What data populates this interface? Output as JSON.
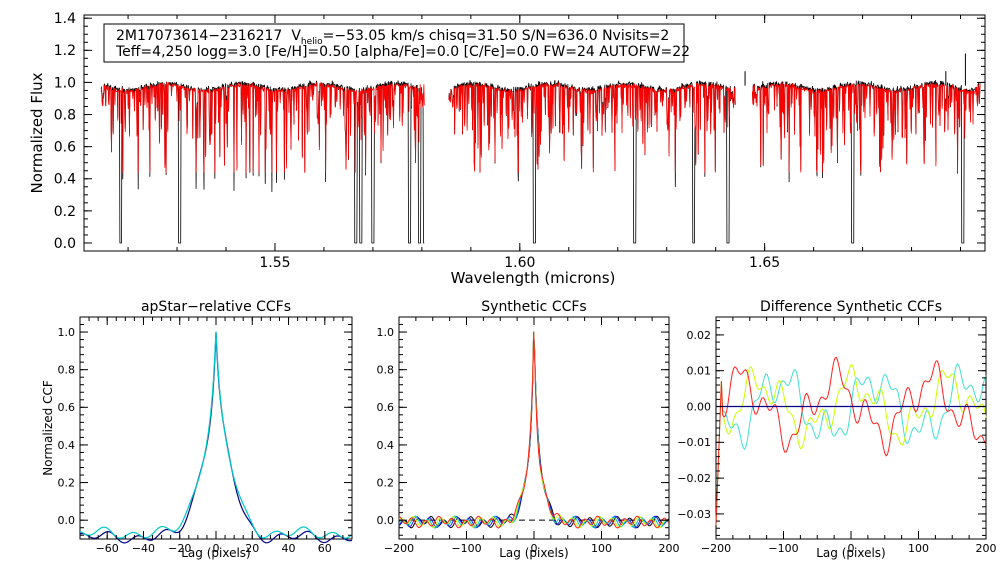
{
  "chart_data": [
    {
      "type": "line",
      "title": "",
      "xlabel": "Wavelength (microns)",
      "ylabel": "Normalized Flux",
      "xlim": [
        1.511,
        1.695
      ],
      "ylim": [
        -0.05,
        1.42
      ],
      "xticks": [
        1.55,
        1.6,
        1.65
      ],
      "xtick_labels": [
        "1.55",
        "1.60",
        "1.65"
      ],
      "yticks": [
        0.0,
        0.2,
        0.4,
        0.6,
        0.8,
        1.0,
        1.2,
        1.4
      ],
      "ytick_labels": [
        "0.0",
        "0.2",
        "0.4",
        "0.6",
        "0.8",
        "1.0",
        "1.2",
        "1.4"
      ],
      "chips": [
        [
          1.5145,
          1.5805
        ],
        [
          1.5855,
          1.644
        ],
        [
          1.6475,
          1.694
        ]
      ],
      "annotation": {
        "line1_name": "2M17073614−2316217",
        "line1_v": "V",
        "line1_sub": "helio",
        "line1_rest": "=−53.05 km/s  chisq=31.50  S/N=636.0  Nvisits=2",
        "line2": "Teff=4,250 logg=3.0 [Fe/H]=0.50 [alpha/Fe]=0.0 [C/Fe]=0.0 FW=24 AUTOFW=22"
      },
      "bad_pixels": [
        1.5185,
        1.5305,
        1.5665,
        1.5675,
        1.57,
        1.5775,
        1.5795,
        1.5805,
        1.603,
        1.6235,
        1.6355,
        1.6425,
        1.668,
        1.6905
      ],
      "series": [
        {
          "name": "observed spectrum",
          "color": "#000000",
          "values": "continuum ~0.97 with many absorption lines; bad pixels drop to 0.0"
        },
        {
          "name": "synthetic fit",
          "color": "#ff0000",
          "values": "continuum ~0.96 with absorption lines down to ~0.45"
        }
      ]
    },
    {
      "type": "line",
      "title": "apStar−relative CCFs",
      "xlabel": "Lag (pixels)",
      "ylabel": "Normalized CCF",
      "xlim": [
        -75,
        75
      ],
      "ylim": [
        -0.1,
        1.08
      ],
      "xticks": [
        -60,
        -40,
        -20,
        0,
        20,
        40,
        60
      ],
      "xtick_labels": [
        "−60",
        "−40",
        "−20",
        "0",
        "20",
        "40",
        "60"
      ],
      "yticks": [
        0.0,
        0.2,
        0.4,
        0.6,
        0.8,
        1.0
      ],
      "ytick_labels": [
        "0.0",
        "0.2",
        "0.4",
        "0.6",
        "0.8",
        "1.0"
      ],
      "series": [
        {
          "name": "visit 1",
          "color": "#00008b",
          "peak": 1.0,
          "wing_level": -0.09
        },
        {
          "name": "visit 2",
          "color": "#00c8c8",
          "peak": 1.0,
          "wing_level": -0.07
        }
      ]
    },
    {
      "type": "line",
      "title": "Synthetic CCFs",
      "xlabel": "Lag (pixels)",
      "ylabel": "",
      "xlim": [
        -200,
        200
      ],
      "ylim": [
        -0.1,
        1.08
      ],
      "xticks": [
        -200,
        -100,
        0,
        100,
        200
      ],
      "xtick_labels": [
        "−200",
        "−100",
        "0",
        "100",
        "200"
      ],
      "yticks": [
        0.0,
        0.2,
        0.4,
        0.6,
        0.8,
        1.0
      ],
      "ytick_labels": [
        "0.0",
        "0.2",
        "0.4",
        "0.6",
        "0.8",
        "1.0"
      ],
      "reference_line": {
        "y": 0.0,
        "style": "dashed"
      },
      "series": [
        {
          "name": "combined",
          "color": "#000000",
          "peak": 1.0
        },
        {
          "name": "visit 1",
          "color": "#2020ff",
          "peak": 1.0
        },
        {
          "name": "visit 2",
          "color": "#00c8c8",
          "peak": 1.0
        },
        {
          "name": "visit 3",
          "color": "#c8ff00",
          "peak": 1.0
        },
        {
          "name": "visit 4",
          "color": "#ff2020",
          "peak": 1.0
        }
      ]
    },
    {
      "type": "line",
      "title": "Difference Synthetic CCFs",
      "xlabel": "Lag (pixels)",
      "ylabel": "",
      "xlim": [
        -200,
        200
      ],
      "ylim": [
        -0.037,
        0.025
      ],
      "xticks": [
        -200,
        -100,
        0,
        100,
        200
      ],
      "xtick_labels": [
        "−200",
        "−100",
        "0",
        "100",
        "200"
      ],
      "yticks": [
        -0.03,
        -0.02,
        -0.01,
        0.0,
        0.01,
        0.02
      ],
      "ytick_labels": [
        "−0.03",
        "−0.02",
        "−0.01",
        "0.00",
        "0.01",
        "0.02"
      ],
      "reference_line": {
        "y": 0.0,
        "color": "#00008b"
      },
      "series": [
        {
          "name": "visit 2",
          "color": "#40e0d0",
          "amplitude": 0.011
        },
        {
          "name": "visit 3",
          "color": "#c8ff00",
          "amplitude": 0.01
        },
        {
          "name": "visit 4",
          "color": "#ff2020",
          "amplitude": 0.011
        }
      ]
    }
  ]
}
